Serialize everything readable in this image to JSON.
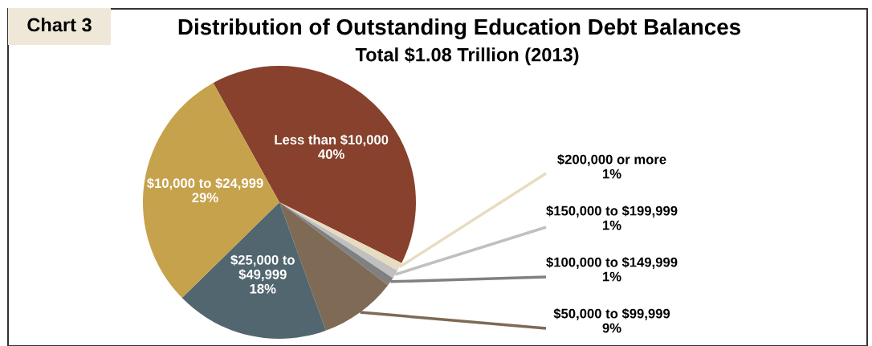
{
  "chart_data": {
    "type": "pie",
    "title": "Distribution of Outstanding Education Debt Balances",
    "subtitle": "Total $1.08 Trillion (2013)",
    "annotations": [
      "Chart 3"
    ],
    "categories": [
      "Less than $10,000",
      "$200,000 or more",
      "$150,000 to $199,999",
      "$100,000 to $149,999",
      "$50,000 to $99,999",
      "$25,000 to\n$49,999",
      "$10,000 to $24,999"
    ],
    "values": [
      40,
      1,
      1,
      1,
      9,
      18,
      29
    ],
    "colors": [
      "#87412d",
      "#e8dcc0",
      "#c0c0c0",
      "#808080",
      "#7f6a55",
      "#51666e",
      "#c6a24c"
    ],
    "value_labels": [
      "40%",
      "1%",
      "1%",
      "1%",
      "9%",
      "18%",
      "29%"
    ],
    "legend": false
  }
}
